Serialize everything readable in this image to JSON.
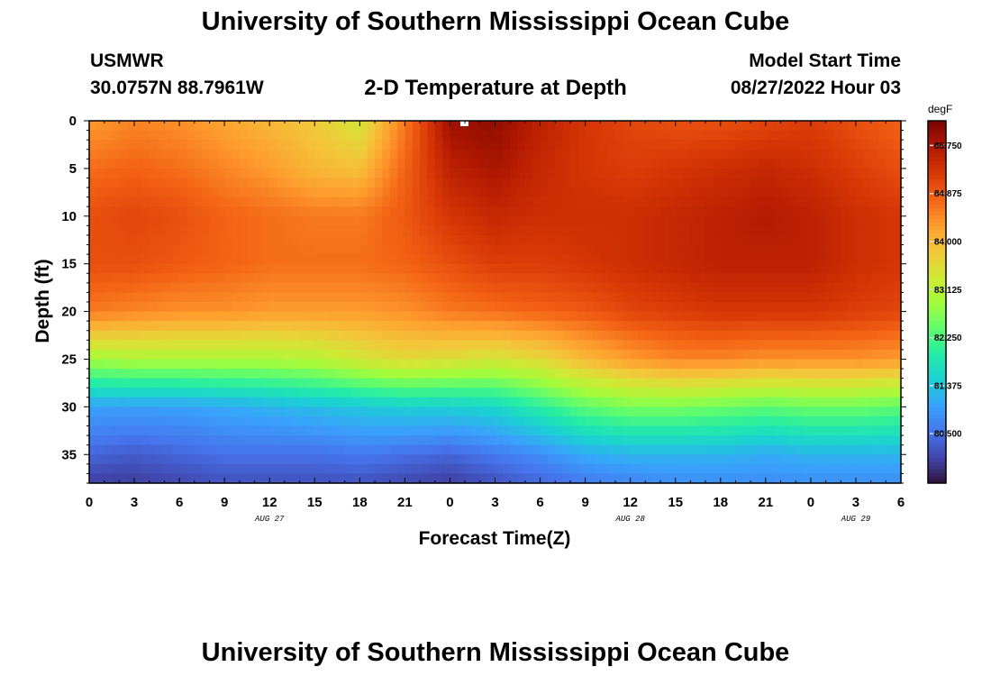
{
  "page": {
    "title": "University of Southern Mississippi Ocean Cube",
    "footer_title": "University of Southern Mississippi Ocean Cube",
    "station": "USMWR",
    "coordinates": "30.0757N  88.7961W",
    "subtitle": "2-D Temperature at Depth",
    "model_start_label": "Model Start Time",
    "model_start_value": "08/27/2022 Hour 03"
  },
  "chart_data": {
    "type": "heatmap",
    "title": "2-D Temperature at Depth",
    "xlabel": "Forecast Time(Z)",
    "ylabel": "Depth (ft)",
    "x_hours": [
      0,
      54
    ],
    "x_tick_labels": [
      "0",
      "3",
      "6",
      "9",
      "12",
      "15",
      "18",
      "21",
      "0",
      "3",
      "6",
      "9",
      "12",
      "15",
      "18",
      "21",
      "0",
      "3",
      "6"
    ],
    "date_labels": [
      {
        "hour": 12,
        "label": "AUG 27"
      },
      {
        "hour": 36,
        "label": "AUG 28"
      },
      {
        "hour": 51,
        "label": "AUG 29"
      }
    ],
    "y_range": [
      0,
      38
    ],
    "y_ticks": [
      0,
      5,
      10,
      15,
      20,
      25,
      30,
      35
    ],
    "colorbar": {
      "unit": "degF",
      "range": [
        79.6,
        86.2
      ],
      "ticks": [
        "85.750",
        "84.875",
        "84.000",
        "83.125",
        "82.250",
        "81.375",
        "80.500"
      ],
      "colors": [
        "#30123b",
        "#4145ab",
        "#4675ed",
        "#39a2fc",
        "#1bcfd4",
        "#24eca6",
        "#61fc6c",
        "#a4fc3b",
        "#d1e834",
        "#f3c63a",
        "#fe9b2d",
        "#f36315",
        "#d93806",
        "#b11901",
        "#7a0402"
      ]
    },
    "columns_hours": [
      0,
      3,
      6,
      9,
      12,
      15,
      18,
      21,
      24,
      27,
      30,
      33,
      36,
      39,
      42,
      45,
      48,
      51,
      54
    ],
    "rows_depth_ft": [
      0,
      5,
      10,
      15,
      20,
      25,
      30,
      35,
      38
    ],
    "temperatures_degF": [
      [
        84.3,
        84.5,
        84.4,
        84.2,
        84.0,
        83.8,
        83.4,
        84.6,
        85.9,
        86.0,
        85.6,
        85.3,
        85.1,
        85.0,
        85.0,
        85.1,
        85.2,
        85.0,
        84.8
      ],
      [
        84.7,
        84.8,
        84.7,
        84.5,
        84.3,
        84.0,
        83.9,
        84.8,
        85.6,
        85.8,
        85.5,
        85.3,
        85.2,
        85.3,
        85.4,
        85.5,
        85.4,
        85.2,
        85.0
      ],
      [
        85.0,
        85.1,
        85.0,
        84.8,
        84.7,
        84.6,
        84.6,
        84.9,
        85.3,
        85.5,
        85.4,
        85.4,
        85.4,
        85.5,
        85.6,
        85.7,
        85.6,
        85.4,
        85.3
      ],
      [
        85.0,
        85.0,
        84.9,
        84.8,
        84.7,
        84.7,
        84.7,
        84.8,
        85.0,
        85.2,
        85.2,
        85.3,
        85.4,
        85.5,
        85.6,
        85.6,
        85.6,
        85.4,
        85.3
      ],
      [
        84.6,
        84.5,
        84.4,
        84.4,
        84.3,
        84.3,
        84.3,
        84.4,
        84.6,
        84.7,
        84.8,
        84.9,
        85.1,
        85.2,
        85.3,
        85.3,
        85.3,
        85.2,
        85.1
      ],
      [
        82.9,
        83.0,
        83.0,
        83.0,
        83.0,
        83.1,
        83.4,
        83.6,
        83.5,
        83.4,
        83.6,
        84.0,
        84.3,
        84.5,
        84.5,
        84.4,
        84.4,
        84.4,
        84.3
      ],
      [
        81.0,
        81.0,
        81.0,
        81.1,
        81.2,
        81.3,
        81.4,
        81.5,
        81.5,
        81.6,
        82.0,
        82.4,
        82.6,
        82.6,
        82.5,
        82.4,
        82.5,
        82.5,
        82.4
      ],
      [
        80.4,
        80.3,
        80.4,
        80.5,
        80.5,
        80.5,
        80.6,
        80.5,
        80.4,
        80.6,
        80.8,
        81.1,
        81.2,
        81.2,
        81.2,
        81.1,
        81.2,
        81.2,
        81.2
      ],
      [
        80.0,
        80.0,
        80.1,
        80.2,
        80.2,
        80.2,
        80.2,
        80.1,
        80.0,
        80.2,
        80.4,
        80.6,
        80.7,
        80.8,
        80.8,
        80.8,
        80.8,
        80.8,
        80.8
      ]
    ]
  }
}
